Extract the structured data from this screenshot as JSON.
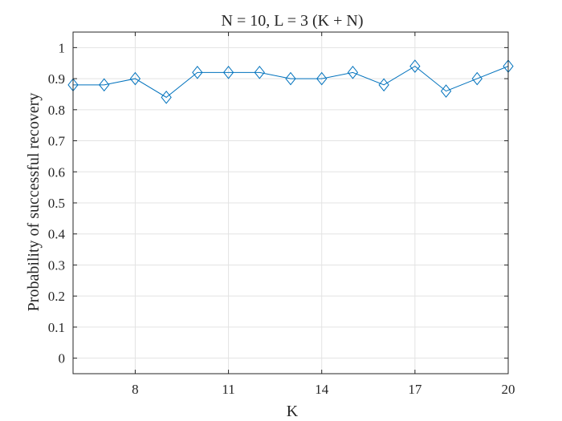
{
  "chart_data": {
    "type": "line",
    "title": "N = 10,  L = 3 (K + N)",
    "xlabel": "K",
    "ylabel": "Probability of successful recovery",
    "xlim": [
      6,
      20
    ],
    "ylim": [
      -0.05,
      1.05
    ],
    "xticks": [
      8,
      11,
      14,
      17,
      20
    ],
    "yticks": [
      0,
      0.1,
      0.2,
      0.3,
      0.4,
      0.5,
      0.6,
      0.7,
      0.8,
      0.9,
      1
    ],
    "ytick_labels": [
      "0",
      "0.1",
      "0.2",
      "0.3",
      "0.4",
      "0.5",
      "0.6",
      "0.7",
      "0.8",
      "0.9",
      "1"
    ],
    "grid": true,
    "marker": "diamond",
    "series": [
      {
        "color": "#0072bd",
        "x": [
          6,
          7,
          8,
          9,
          10,
          11,
          12,
          13,
          14,
          15,
          16,
          17,
          18,
          19,
          20
        ],
        "y": [
          0.88,
          0.88,
          0.9,
          0.84,
          0.92,
          0.92,
          0.92,
          0.9,
          0.9,
          0.92,
          0.88,
          0.94,
          0.86,
          0.9,
          0.94
        ]
      }
    ]
  }
}
